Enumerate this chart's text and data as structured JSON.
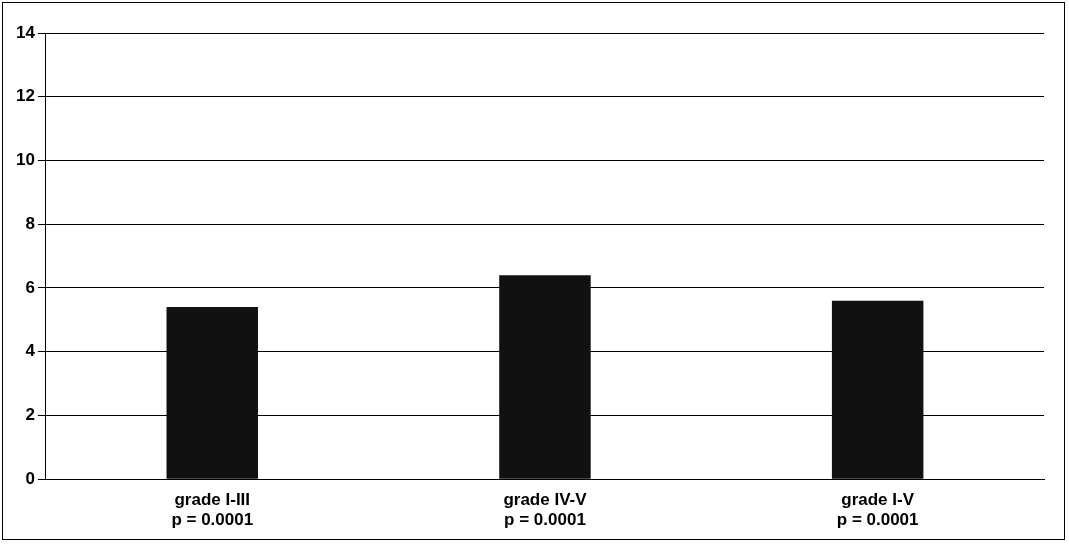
{
  "chart_data": {
    "type": "bar",
    "categories": [
      "grade I-III\np = 0.0001",
      "grade IV-V\np = 0.0001",
      "grade I-V\np = 0.0001"
    ],
    "values": [
      5.4,
      6.4,
      5.6
    ],
    "color": "#111111",
    "ylim": [
      0,
      14
    ],
    "yticks": [
      0,
      2,
      4,
      6,
      8,
      10,
      12,
      14
    ],
    "grid": "y",
    "legend": false
  }
}
